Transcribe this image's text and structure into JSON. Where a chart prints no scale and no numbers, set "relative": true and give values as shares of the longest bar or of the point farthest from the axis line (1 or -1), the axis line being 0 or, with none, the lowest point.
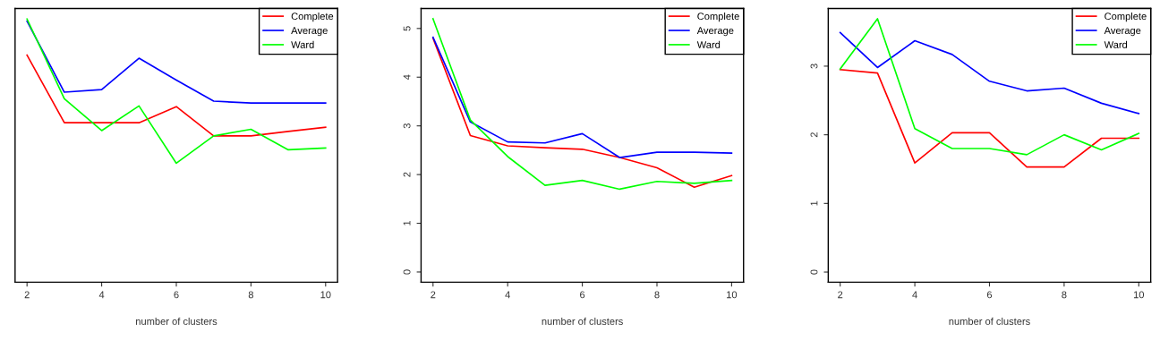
{
  "chart_data": [
    {
      "type": "line",
      "relative": true,
      "xlabel": "number of clusters",
      "x": [
        2,
        3,
        4,
        5,
        6,
        7,
        8,
        9,
        10
      ],
      "xlim": [
        1.68,
        10.32
      ],
      "xticks": [
        2,
        4,
        6,
        8,
        10
      ],
      "legend": "top right",
      "grid": false,
      "series": [
        {
          "name": "Complete",
          "color": "#ff0000",
          "values": [
            0.863,
            0.606,
            0.606,
            0.606,
            0.667,
            0.556,
            0.556,
            0.573,
            0.589
          ]
        },
        {
          "name": "Average",
          "color": "#0000ff",
          "values": [
            0.992,
            0.722,
            0.732,
            0.851,
            0.768,
            0.688,
            0.681,
            0.681,
            0.681
          ]
        },
        {
          "name": "Ward",
          "color": "#00ff00",
          "values": [
            1,
            0.697,
            0.576,
            0.67,
            0.452,
            0.556,
            0.581,
            0.503,
            0.51
          ]
        }
      ]
    },
    {
      "type": "line",
      "xlabel": "number of clusters",
      "x": [
        2,
        3,
        4,
        5,
        6,
        7,
        8,
        9,
        10
      ],
      "xlim": [
        1.68,
        10.32
      ],
      "xticks": [
        2,
        4,
        6,
        8,
        10
      ],
      "ylim": [
        -0.21,
        5.41
      ],
      "yticks": [
        0,
        1,
        2,
        3,
        4,
        5
      ],
      "legend": "top right",
      "grid": false,
      "series": [
        {
          "name": "Complete",
          "color": "#ff0000",
          "values": [
            4.8,
            2.8,
            2.59,
            2.55,
            2.52,
            2.35,
            2.14,
            1.74,
            1.98
          ]
        },
        {
          "name": "Average",
          "color": "#0000ff",
          "values": [
            4.82,
            3.08,
            2.67,
            2.65,
            2.84,
            2.35,
            2.46,
            2.46,
            2.44
          ]
        },
        {
          "name": "Ward",
          "color": "#00ff00",
          "values": [
            5.2,
            3.12,
            2.37,
            1.78,
            1.88,
            1.7,
            1.86,
            1.82,
            1.88
          ]
        }
      ]
    },
    {
      "type": "line",
      "xlabel": "number of clusters",
      "x": [
        2,
        3,
        4,
        5,
        6,
        7,
        8,
        9,
        10
      ],
      "xlim": [
        1.68,
        10.32
      ],
      "xticks": [
        2,
        4,
        6,
        8,
        10
      ],
      "ylim": [
        -0.148,
        3.84
      ],
      "yticks": [
        0,
        1,
        2,
        3
      ],
      "legend": "top right",
      "grid": false,
      "series": [
        {
          "name": "Complete",
          "color": "#ff0000",
          "values": [
            2.95,
            2.9,
            1.59,
            2.03,
            2.03,
            1.53,
            1.53,
            1.95,
            1.95
          ]
        },
        {
          "name": "Average",
          "color": "#0000ff",
          "values": [
            3.49,
            2.98,
            3.37,
            3.17,
            2.78,
            2.64,
            2.68,
            2.46,
            2.31
          ]
        },
        {
          "name": "Ward",
          "color": "#00ff00",
          "values": [
            2.96,
            3.69,
            2.09,
            1.8,
            1.8,
            1.71,
            2.0,
            1.78,
            2.02
          ]
        }
      ]
    }
  ]
}
